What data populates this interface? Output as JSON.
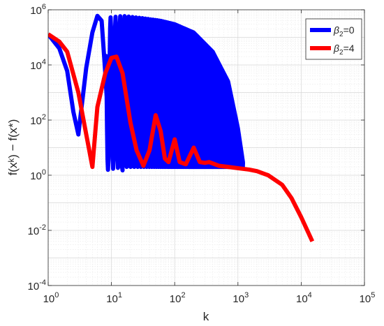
{
  "chart_data": {
    "type": "line",
    "title": "",
    "xlabel": "k",
    "ylabel": "f(xᵏ) − f(x*)",
    "x_scale": "log",
    "y_scale": "log",
    "xlim": [
      1,
      100000
    ],
    "ylim": [
      0.0001,
      1000000
    ],
    "grid": true,
    "legend_position": "top-right",
    "x_ticks": [
      {
        "value": 1,
        "base": "10",
        "exp": "0"
      },
      {
        "value": 10,
        "base": "10",
        "exp": "1"
      },
      {
        "value": 100,
        "base": "10",
        "exp": "2"
      },
      {
        "value": 1000,
        "base": "10",
        "exp": "3"
      },
      {
        "value": 10000,
        "base": "10",
        "exp": "4"
      },
      {
        "value": 100000,
        "base": "10",
        "exp": "5"
      }
    ],
    "y_ticks": [
      {
        "value": 0.0001,
        "base": "10",
        "exp": "-4"
      },
      {
        "value": 0.01,
        "base": "10",
        "exp": "-2"
      },
      {
        "value": 1,
        "base": "10",
        "exp": "0"
      },
      {
        "value": 100,
        "base": "10",
        "exp": "2"
      },
      {
        "value": 10000,
        "base": "10",
        "exp": "4"
      },
      {
        "value": 1000000,
        "base": "10",
        "exp": "6"
      }
    ],
    "series": [
      {
        "name": "β₂=0",
        "legend_base": "β",
        "legend_sub": "2",
        "legend_rest": "=0",
        "color": "#0000ff",
        "oscillating": true,
        "envelope_x": [
          8,
          15,
          30,
          60,
          100,
          200,
          400,
          700,
          1000,
          1200
        ],
        "envelope_upper": [
          500000,
          600000,
          500000,
          400000,
          300000,
          150000,
          30000,
          2500,
          50,
          3
        ],
        "envelope_lower": [
          1.5,
          2,
          2,
          2,
          2,
          2,
          2,
          2,
          2,
          2
        ],
        "x": [
          1,
          1.5,
          2,
          2.5,
          3,
          3.5,
          4,
          5,
          6,
          7,
          8,
          9,
          10,
          12,
          15
        ],
        "y": [
          130000,
          40000,
          6000,
          200,
          30,
          600,
          8000,
          150000,
          600000,
          400000,
          5000,
          50,
          10000,
          250000,
          1.5
        ]
      },
      {
        "name": "β₂=4",
        "legend_base": "β",
        "legend_sub": "2",
        "legend_rest": "=4",
        "color": "#ff0000",
        "oscillating": false,
        "x": [
          1,
          1.5,
          2,
          3,
          4,
          5,
          6,
          8,
          10,
          12,
          15,
          20,
          25,
          32,
          40,
          50,
          60,
          70,
          80,
          100,
          120,
          150,
          200,
          250,
          300,
          350,
          500,
          700,
          1000,
          1500,
          2000,
          3000,
          5000,
          7000,
          10000,
          15000
        ],
        "y": [
          130000,
          70000,
          30000,
          1000,
          30,
          2,
          300,
          5000,
          18000,
          20000,
          5000,
          80,
          8,
          2.2,
          8,
          150,
          40,
          4,
          3,
          20,
          3,
          2.5,
          10,
          3,
          2.8,
          3,
          2.2,
          2,
          1.8,
          1.6,
          1.4,
          1,
          0.45,
          0.15,
          0.03,
          0.004
        ]
      }
    ]
  }
}
